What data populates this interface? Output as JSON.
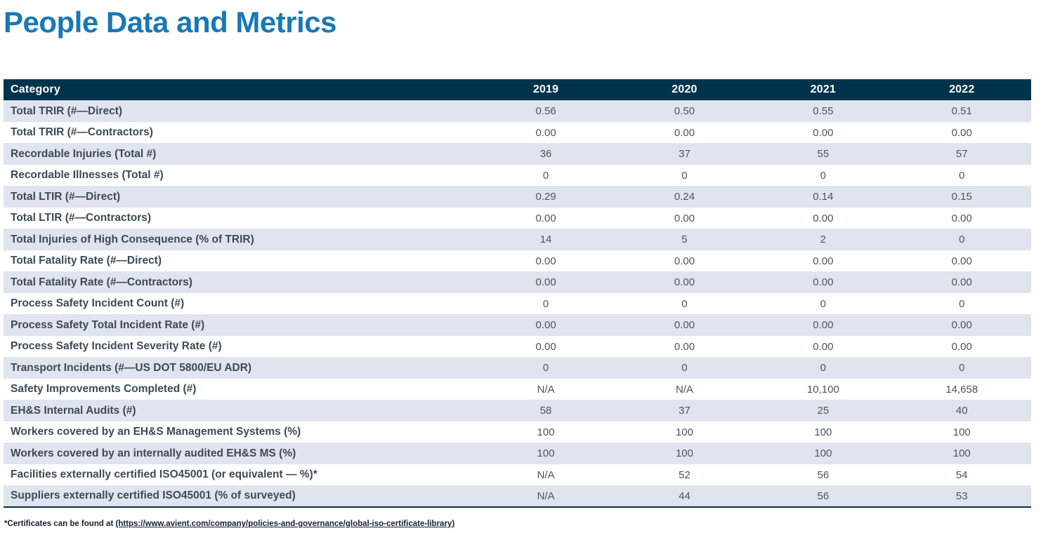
{
  "page": {
    "title": "People Data and Metrics"
  },
  "colors": {
    "title": "#1878b6",
    "header_bg": "#00344d",
    "header_text": "#ffffff",
    "row_alt_bg": "#e0e4ee",
    "row_bg": "#ffffff",
    "label_text": "#3d4a57",
    "value_text": "#4b5563",
    "table_border": "#00344d",
    "footnote_text": "#16212c"
  },
  "table": {
    "header": {
      "category": "Category",
      "years": [
        "2019",
        "2020",
        "2021",
        "2022"
      ]
    },
    "rows": [
      {
        "label": "Total TRIR (#—Direct)",
        "values": [
          "0.56",
          "0.50",
          "0.55",
          "0.51"
        ]
      },
      {
        "label": "Total TRIR (#—Contractors)",
        "values": [
          "0.00",
          "0.00",
          "0.00",
          "0.00"
        ]
      },
      {
        "label": "Recordable Injuries (Total #)",
        "values": [
          "36",
          "37",
          "55",
          "57"
        ]
      },
      {
        "label": "Recordable Illnesses (Total #)",
        "values": [
          "0",
          "0",
          "0",
          "0"
        ]
      },
      {
        "label": "Total LTIR (#—Direct)",
        "values": [
          "0.29",
          "0.24",
          "0.14",
          "0.15"
        ]
      },
      {
        "label": "Total LTIR (#—Contractors)",
        "values": [
          "0.00",
          "0.00",
          "0.00",
          "0.00"
        ]
      },
      {
        "label": "Total Injuries of High Consequence (% of TRIR)",
        "values": [
          "14",
          "5",
          "2",
          "0"
        ]
      },
      {
        "label": "Total Fatality Rate (#—Direct)",
        "values": [
          "0.00",
          "0.00",
          "0.00",
          "0.00"
        ]
      },
      {
        "label": "Total Fatality Rate (#—Contractors)",
        "values": [
          "0.00",
          "0.00",
          "0.00",
          "0.00"
        ]
      },
      {
        "label": "Process Safety Incident Count (#)",
        "values": [
          "0",
          "0",
          "0",
          "0"
        ]
      },
      {
        "label": "Process Safety Total Incident Rate (#)",
        "values": [
          "0.00",
          "0.00",
          "0.00",
          "0.00"
        ]
      },
      {
        "label": "Process Safety Incident Severity Rate (#)",
        "values": [
          "0.00",
          "0.00",
          "0.00",
          "0.00"
        ]
      },
      {
        "label": "Transport Incidents (#—US DOT 5800/EU ADR)",
        "values": [
          "0",
          "0",
          "0",
          "0"
        ]
      },
      {
        "label": "Safety Improvements Completed (#)",
        "values": [
          "N/A",
          "N/A",
          "10,100",
          "14,658"
        ]
      },
      {
        "label": "EH&S Internal Audits (#)",
        "values": [
          "58",
          "37",
          "25",
          "40"
        ]
      },
      {
        "label": "Workers covered by an EH&S Management Systems (%)",
        "values": [
          "100",
          "100",
          "100",
          "100"
        ]
      },
      {
        "label": "Workers covered by an internally audited EH&S MS (%)",
        "values": [
          "100",
          "100",
          "100",
          "100"
        ]
      },
      {
        "label": "Facilities externally certified ISO45001 (or equivalent — %)*",
        "values": [
          "N/A",
          "52",
          "56",
          "54"
        ]
      },
      {
        "label": "Suppliers externally certified ISO45001 (% of surveyed)",
        "values": [
          "N/A",
          "44",
          "56",
          "53"
        ]
      }
    ]
  },
  "footnote": {
    "prefix": "*Certificates can be found at ",
    "link_text": "(https://www.avient.com/company/policies-and-governance/global-iso-certificate-library)"
  }
}
